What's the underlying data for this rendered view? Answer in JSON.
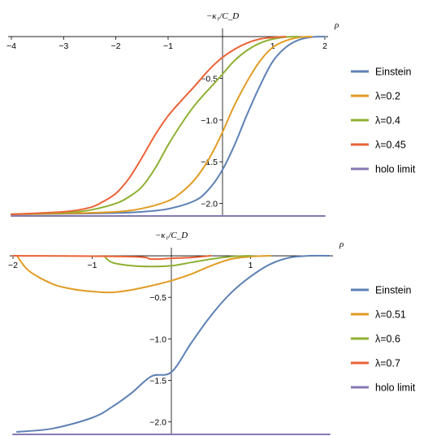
{
  "chart_data": [
    {
      "type": "line",
      "title": "",
      "xlabel": "ρ",
      "ylabel": "−κ₁/C_D",
      "xlim": [
        -4,
        2
      ],
      "ylim": [
        -2.15,
        0.02
      ],
      "x_ticks": [
        -4,
        -3,
        -2,
        -1,
        1,
        2
      ],
      "y_ticks": [
        -0.5,
        -1.0,
        -1.5,
        -2.0
      ],
      "x_tick_labels": [
        "−4",
        "−3",
        "−2",
        "−1",
        "1",
        "2"
      ],
      "y_tick_labels": [
        "−0.5",
        "−1.0",
        "−1.5",
        "−2.0"
      ],
      "legend_position": "right",
      "series": [
        {
          "name": "Einstein",
          "color": "#5e81b5",
          "points": [
            [
              -4,
              -2.13
            ],
            [
              -3,
              -2.125
            ],
            [
              -2,
              -2.115
            ],
            [
              -1.5,
              -2.1
            ],
            [
              -1,
              -2.065
            ],
            [
              -0.5,
              -1.97
            ],
            [
              -0.25,
              -1.85
            ],
            [
              0,
              -1.64
            ],
            [
              0.25,
              -1.33
            ],
            [
              0.5,
              -0.95
            ],
            [
              0.75,
              -0.6
            ],
            [
              1,
              -0.3
            ],
            [
              1.25,
              -0.13
            ],
            [
              1.5,
              -0.04
            ],
            [
              1.75,
              -0.005
            ],
            [
              2,
              0
            ]
          ]
        },
        {
          "name": "λ=0.2",
          "color": "#e19c24",
          "points": [
            [
              -4,
              -2.13
            ],
            [
              -3,
              -2.12
            ],
            [
              -2,
              -2.1
            ],
            [
              -1.5,
              -2.06
            ],
            [
              -1,
              -1.97
            ],
            [
              -0.75,
              -1.87
            ],
            [
              -0.5,
              -1.72
            ],
            [
              -0.25,
              -1.5
            ],
            [
              0,
              -1.2
            ],
            [
              0.25,
              -0.85
            ],
            [
              0.5,
              -0.55
            ],
            [
              0.75,
              -0.3
            ],
            [
              1,
              -0.13
            ],
            [
              1.25,
              -0.05
            ],
            [
              1.5,
              -0.01
            ],
            [
              1.75,
              0
            ]
          ]
        },
        {
          "name": "λ=0.4",
          "color": "#8fb032",
          "points": [
            [
              -4,
              -2.13
            ],
            [
              -3,
              -2.11
            ],
            [
              -2.5,
              -2.08
            ],
            [
              -2,
              -2.0
            ],
            [
              -1.75,
              -1.92
            ],
            [
              -1.5,
              -1.8
            ],
            [
              -1.25,
              -1.58
            ],
            [
              -1,
              -1.3
            ],
            [
              -0.75,
              -1.05
            ],
            [
              -0.5,
              -0.83
            ],
            [
              -0.25,
              -0.65
            ],
            [
              0,
              -0.48
            ],
            [
              0.25,
              -0.3
            ],
            [
              0.5,
              -0.17
            ],
            [
              0.75,
              -0.08
            ],
            [
              1,
              -0.03
            ],
            [
              1.25,
              -0.005
            ],
            [
              1.5,
              0
            ]
          ]
        },
        {
          "name": "λ=0.45",
          "color": "#eb6235",
          "points": [
            [
              -4,
              -2.13
            ],
            [
              -3,
              -2.1
            ],
            [
              -2.5,
              -2.05
            ],
            [
              -2.25,
              -1.98
            ],
            [
              -2,
              -1.88
            ],
            [
              -1.75,
              -1.7
            ],
            [
              -1.5,
              -1.45
            ],
            [
              -1.25,
              -1.18
            ],
            [
              -1,
              -0.95
            ],
            [
              -0.75,
              -0.77
            ],
            [
              -0.5,
              -0.6
            ],
            [
              -0.25,
              -0.42
            ],
            [
              0,
              -0.27
            ],
            [
              0.25,
              -0.16
            ],
            [
              0.5,
              -0.08
            ],
            [
              0.75,
              -0.03
            ],
            [
              1,
              -0.01
            ],
            [
              1.25,
              0
            ]
          ]
        },
        {
          "name": "holo limit",
          "color": "#8778b3",
          "points": [
            [
              -4,
              -2.15
            ],
            [
              2,
              -2.15
            ]
          ]
        }
      ]
    },
    {
      "type": "line",
      "title": "",
      "xlabel": "ρ",
      "ylabel": "−κ₁/C_D",
      "xlim": [
        -2,
        2
      ],
      "ylim": [
        -2.15,
        0.02
      ],
      "x_ticks": [
        -2,
        -1,
        1
      ],
      "y_ticks": [
        -0.5,
        -1.0,
        -1.5,
        -2.0
      ],
      "x_tick_labels": [
        "−2",
        "−1",
        "1"
      ],
      "y_tick_labels": [
        "−0.5",
        "−1.0",
        "−1.5",
        "−2.0"
      ],
      "legend_position": "right",
      "series": [
        {
          "name": "Einstein",
          "color": "#5e81b5",
          "points": [
            [
              -1.95,
              -2.12
            ],
            [
              -1.5,
              -2.08
            ],
            [
              -1,
              -1.95
            ],
            [
              -0.75,
              -1.82
            ],
            [
              -0.5,
              -1.65
            ],
            [
              -0.25,
              -1.45
            ],
            [
              0,
              -1.4
            ],
            [
              0.25,
              -1.05
            ],
            [
              0.5,
              -0.72
            ],
            [
              0.75,
              -0.45
            ],
            [
              1,
              -0.25
            ],
            [
              1.25,
              -0.1
            ],
            [
              1.5,
              -0.02
            ],
            [
              1.75,
              0
            ],
            [
              2,
              0
            ]
          ]
        },
        {
          "name": "λ=0.51",
          "color": "#e19c24",
          "points": [
            [
              -1.95,
              0
            ],
            [
              -1.8,
              -0.18
            ],
            [
              -1.5,
              -0.34
            ],
            [
              -1.25,
              -0.4
            ],
            [
              -1,
              -0.43
            ],
            [
              -0.75,
              -0.44
            ],
            [
              -0.5,
              -0.41
            ],
            [
              -0.25,
              -0.36
            ],
            [
              0,
              -0.3
            ],
            [
              0.25,
              -0.22
            ],
            [
              0.5,
              -0.12
            ],
            [
              0.75,
              -0.04
            ],
            [
              1,
              -0.01
            ],
            [
              1.25,
              0
            ]
          ]
        },
        {
          "name": "λ=0.6",
          "color": "#8fb032",
          "points": [
            [
              -0.85,
              0
            ],
            [
              -0.75,
              -0.08
            ],
            [
              -0.5,
              -0.12
            ],
            [
              -0.25,
              -0.13
            ],
            [
              0,
              -0.12
            ],
            [
              0.25,
              -0.08
            ],
            [
              0.5,
              -0.04
            ],
            [
              0.75,
              -0.01
            ],
            [
              1,
              0
            ]
          ]
        },
        {
          "name": "λ=0.7",
          "color": "#eb6235",
          "points": [
            [
              -2,
              0
            ],
            [
              -0.5,
              -0.01
            ],
            [
              -0.25,
              -0.04
            ],
            [
              0,
              -0.03
            ],
            [
              0.25,
              -0.02
            ],
            [
              0.5,
              0
            ]
          ]
        },
        {
          "name": "holo limit",
          "color": "#8778b3",
          "points": [
            [
              -2,
              -2.15
            ],
            [
              2,
              -2.15
            ]
          ]
        }
      ]
    }
  ]
}
